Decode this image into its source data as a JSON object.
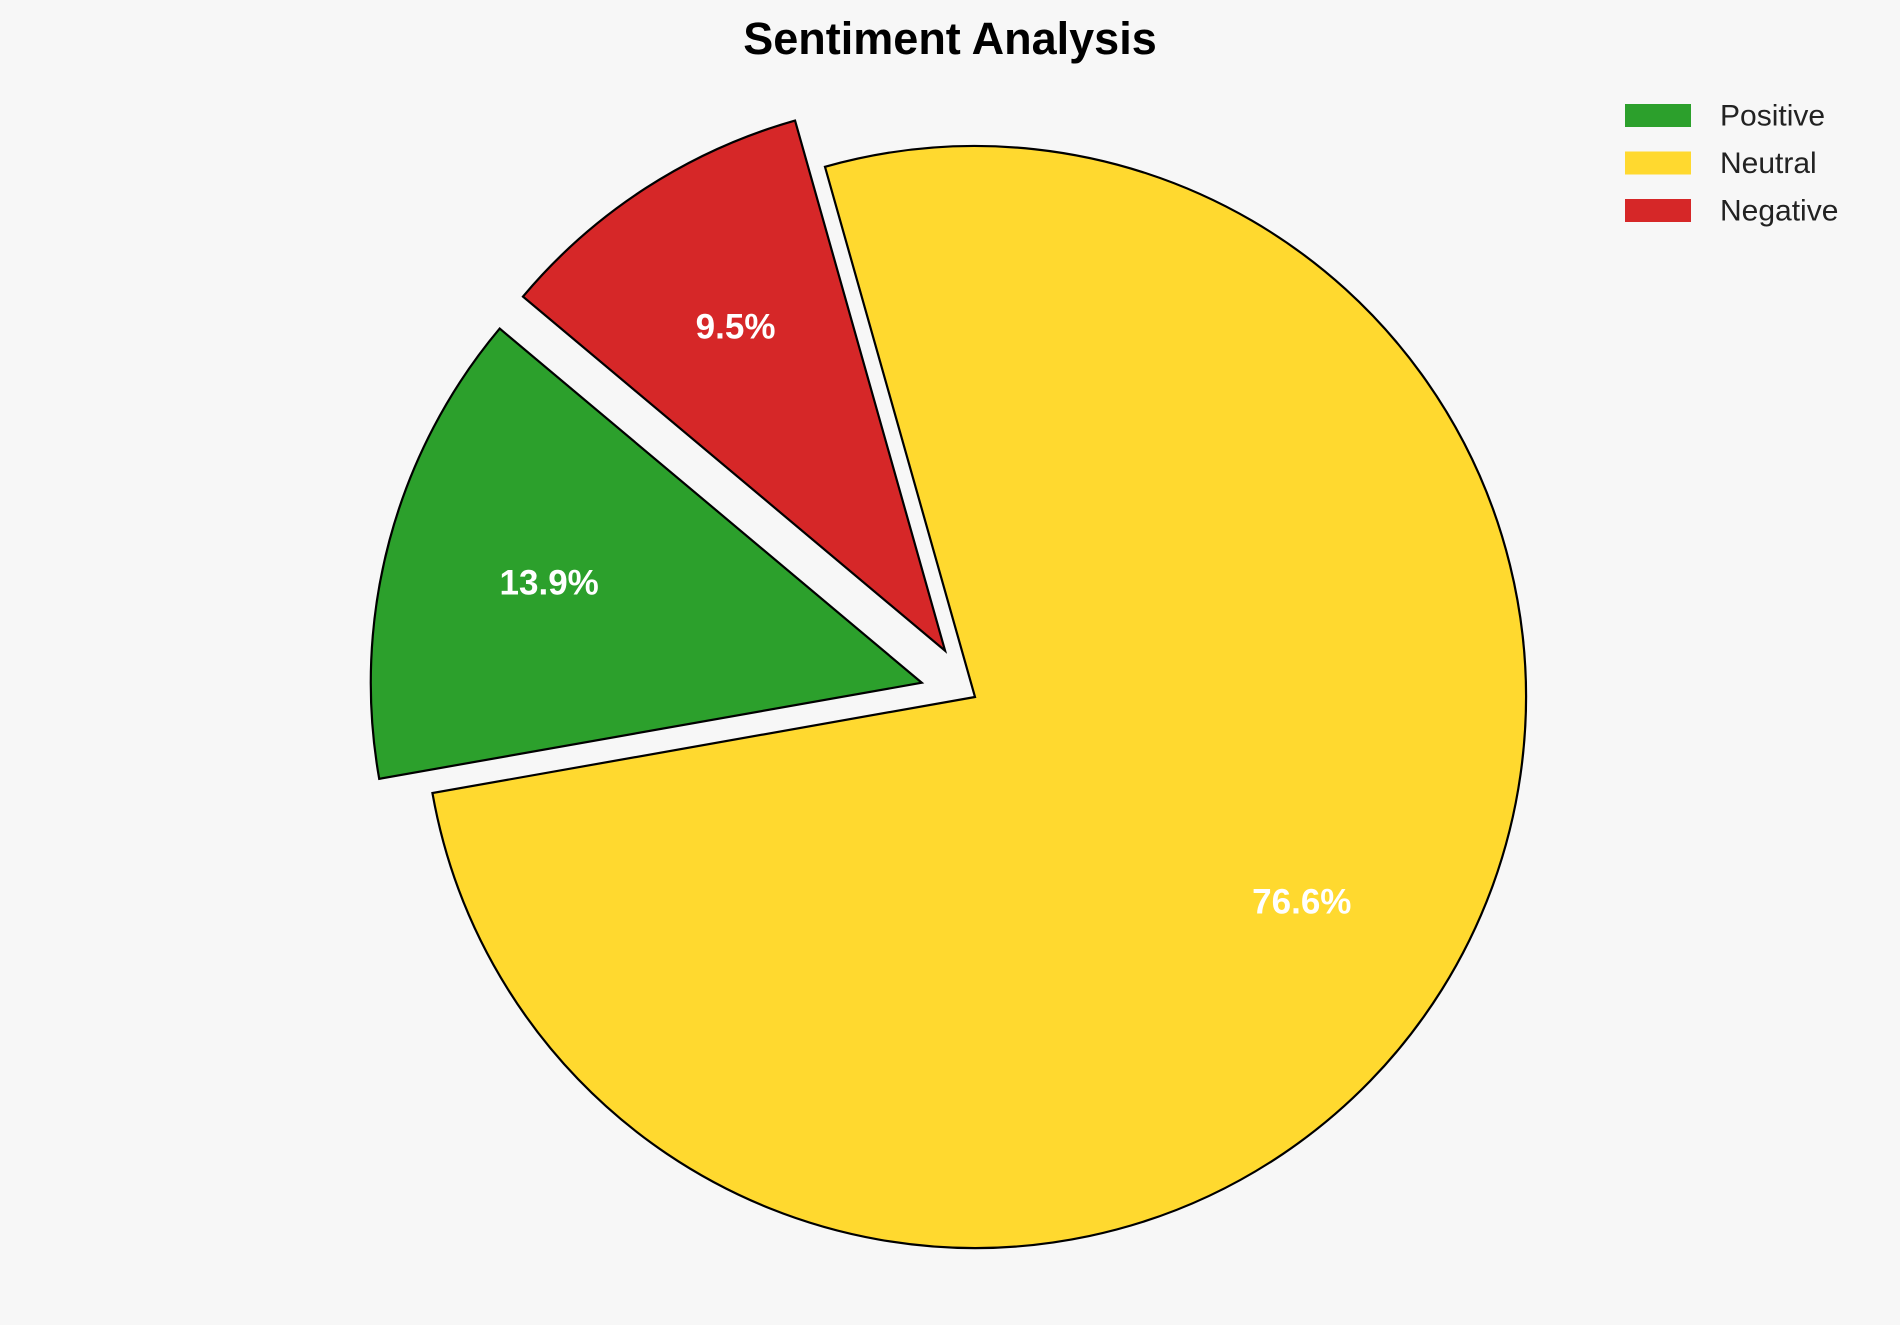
{
  "chart_data": {
    "type": "pie",
    "title": "Sentiment Analysis",
    "categories": [
      "Positive",
      "Neutral",
      "Negative"
    ],
    "values": [
      13.9,
      76.6,
      9.5
    ],
    "labels": [
      "13.9%",
      "76.6%",
      "9.5%"
    ],
    "colors": [
      "#2ca02c",
      "#ffd92f",
      "#d62728"
    ],
    "exploded": [
      true,
      false,
      true
    ],
    "start_angle_deg": 140,
    "direction": "counterclockwise",
    "legend_position": "top-right",
    "background": "#f7f7f7"
  }
}
